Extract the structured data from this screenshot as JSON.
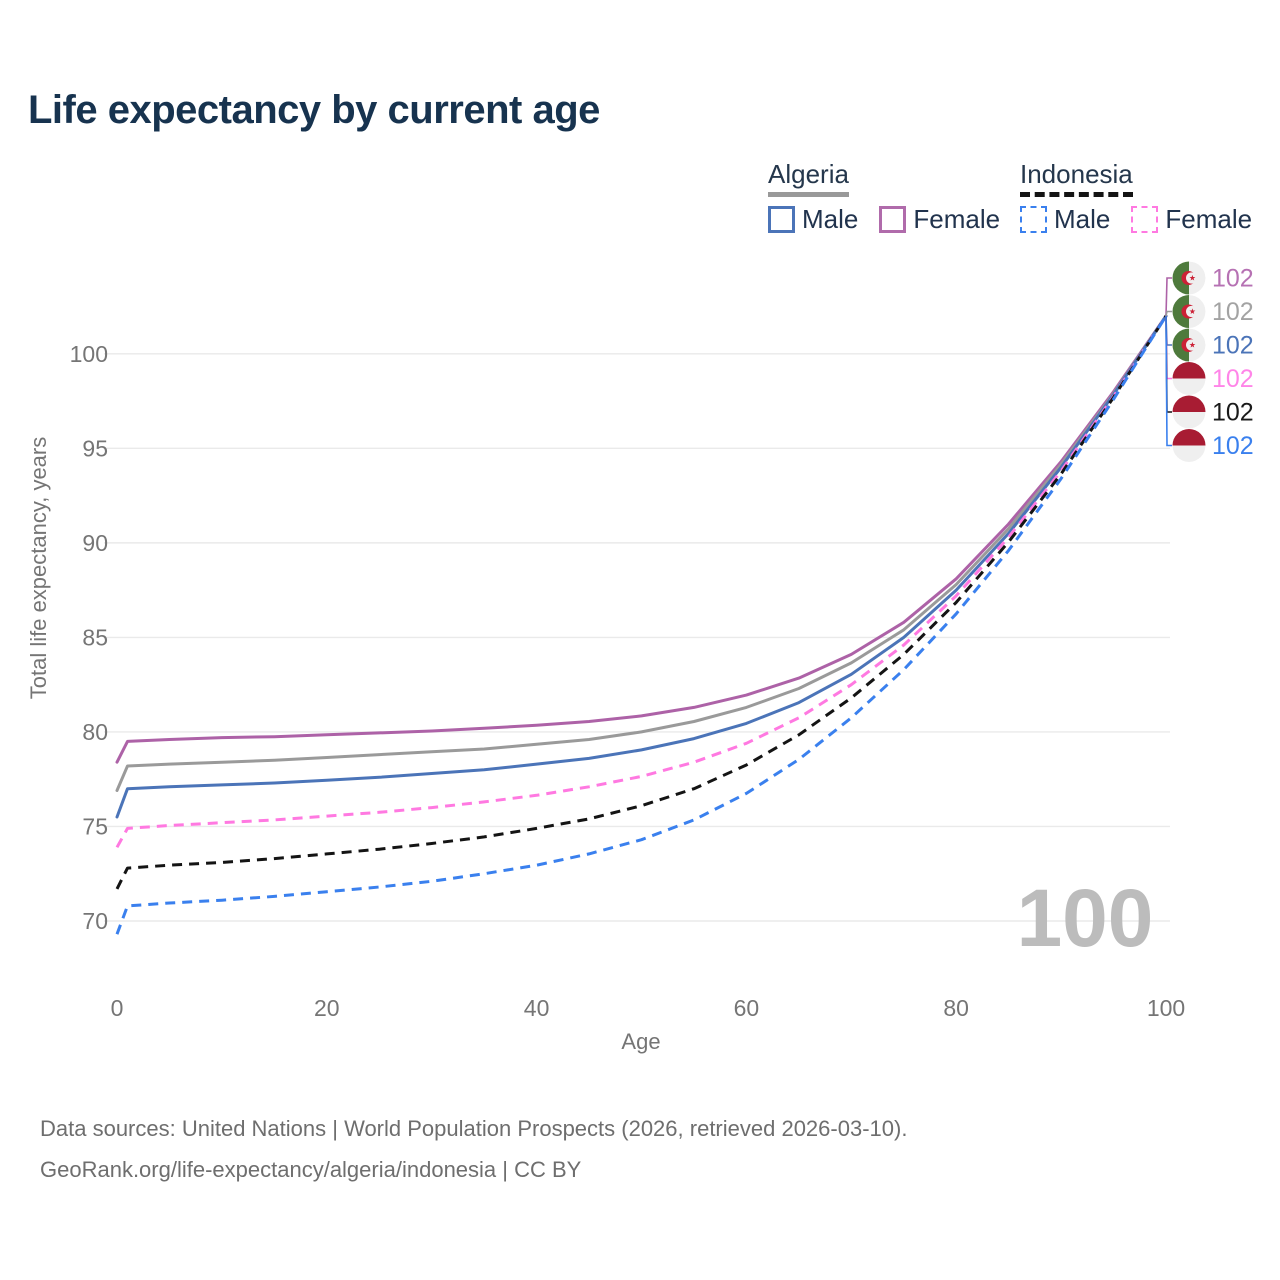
{
  "title": "Life expectancy by current age",
  "legend": {
    "groups": [
      {
        "label": "Algeria",
        "line_style": "solid",
        "underline_color": "#999999",
        "items": [
          {
            "label": "Male",
            "color": "#4b74b8",
            "dashed": false
          },
          {
            "label": "Female",
            "color": "#b06bab",
            "dashed": false
          }
        ]
      },
      {
        "label": "Indonesia",
        "line_style": "dashed",
        "underline_color": "#141414",
        "items": [
          {
            "label": "Male",
            "color": "#3a80ee",
            "dashed": true
          },
          {
            "label": "Female",
            "color": "#ff79e1",
            "dashed": true
          }
        ]
      }
    ]
  },
  "chart_data": {
    "type": "line",
    "title": "Life expectancy by current age",
    "xlabel": "Age",
    "ylabel": "Total life expectancy, years",
    "x_ticks": [
      0,
      20,
      40,
      60,
      80,
      100
    ],
    "y_ticks": [
      70,
      75,
      80,
      85,
      90,
      95,
      100
    ],
    "xlim": [
      0,
      100
    ],
    "ylim": [
      69,
      103
    ],
    "grid": "horizontal",
    "legend_position": "top-right",
    "watermark": "100",
    "x": [
      0,
      1,
      5,
      10,
      15,
      20,
      25,
      30,
      35,
      40,
      45,
      50,
      55,
      60,
      65,
      70,
      75,
      80,
      85,
      90,
      95,
      100
    ],
    "series": [
      {
        "name": "Algeria Female",
        "country": "Algeria",
        "sex": "Female",
        "color": "#ad62a7",
        "dashed": false,
        "flag": "algeria",
        "end_label": "102",
        "end_label_color": "#b671b3",
        "values": [
          78.4,
          79.5,
          79.6,
          79.7,
          79.75,
          79.85,
          79.95,
          80.05,
          80.2,
          80.35,
          80.55,
          80.85,
          81.3,
          81.95,
          82.85,
          84.1,
          85.8,
          88.1,
          91.0,
          94.3,
          98.0,
          102
        ]
      },
      {
        "name": "Algeria Both sexes",
        "country": "Algeria",
        "sex": "Both",
        "color": "#9a9a9a",
        "dashed": false,
        "flag": "algeria",
        "end_label": "102",
        "end_label_color": "#a3a3a3",
        "values": [
          76.9,
          78.2,
          78.3,
          78.4,
          78.5,
          78.65,
          78.8,
          78.95,
          79.1,
          79.35,
          79.6,
          80.0,
          80.55,
          81.3,
          82.3,
          83.65,
          85.4,
          87.8,
          90.75,
          94.15,
          97.9,
          102
        ]
      },
      {
        "name": "Algeria Male",
        "country": "Algeria",
        "sex": "Male",
        "color": "#4b74b8",
        "dashed": false,
        "flag": "algeria",
        "end_label": "102",
        "end_label_color": "#4b74b8",
        "values": [
          75.5,
          77.0,
          77.1,
          77.2,
          77.3,
          77.45,
          77.6,
          77.8,
          78.0,
          78.3,
          78.6,
          79.05,
          79.65,
          80.45,
          81.55,
          83.05,
          85.0,
          87.5,
          90.5,
          94.0,
          97.85,
          102
        ]
      },
      {
        "name": "Indonesia Female",
        "country": "Indonesia",
        "sex": "Female",
        "color": "#ff79e1",
        "dashed": true,
        "flag": "indonesia",
        "end_label": "102",
        "end_label_color": "#ff85e8",
        "values": [
          73.9,
          74.9,
          75.05,
          75.2,
          75.35,
          75.55,
          75.75,
          76.0,
          76.3,
          76.65,
          77.1,
          77.65,
          78.4,
          79.4,
          80.75,
          82.5,
          84.6,
          87.2,
          90.3,
          93.8,
          97.75,
          102
        ]
      },
      {
        "name": "Indonesia Both sexes",
        "country": "Indonesia",
        "sex": "Both",
        "color": "#141414",
        "dashed": true,
        "flag": "indonesia",
        "end_label": "102",
        "end_label_color": "#1a1a1a",
        "values": [
          71.7,
          72.8,
          72.95,
          73.1,
          73.3,
          73.55,
          73.8,
          74.1,
          74.45,
          74.9,
          75.4,
          76.1,
          77.0,
          78.25,
          79.85,
          81.8,
          84.1,
          86.85,
          90.05,
          93.65,
          97.7,
          102
        ]
      },
      {
        "name": "Indonesia Male",
        "country": "Indonesia",
        "sex": "Male",
        "color": "#3a80ee",
        "dashed": true,
        "flag": "indonesia",
        "end_label": "102",
        "end_label_color": "#3a80ee",
        "values": [
          69.3,
          70.8,
          70.95,
          71.1,
          71.3,
          71.55,
          71.8,
          72.1,
          72.5,
          72.95,
          73.55,
          74.3,
          75.35,
          76.75,
          78.55,
          80.75,
          83.3,
          86.25,
          89.6,
          93.4,
          97.6,
          102
        ]
      }
    ]
  },
  "footer": {
    "line1": "Data sources: United Nations | World Population Prospects (2026, retrieved 2026-03-10).",
    "line2": "GeoRank.org/life-expectancy/algeria/indonesia | CC BY"
  }
}
